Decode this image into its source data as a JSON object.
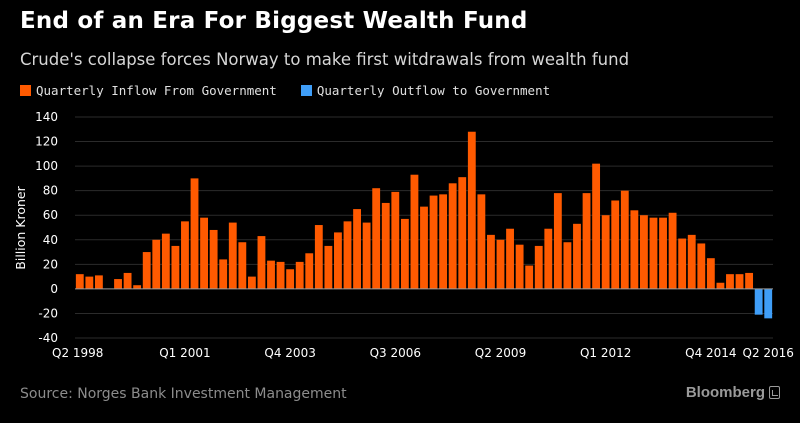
{
  "header": {
    "title": "End of an Era For Biggest Wealth Fund",
    "subtitle": "Crude's collapse forces Norway to make first witdrawals from wealth fund"
  },
  "legend": {
    "inflow_label": "Quarterly Inflow From Government",
    "outflow_label": "Quarterly Outflow to Government"
  },
  "colors": {
    "inflow": "#ff5a00",
    "outflow": "#3f9ef8",
    "gridline": "#2b2b2b",
    "zeroline": "#9a9a9a",
    "tick_text": "#ffffff"
  },
  "footer": {
    "source": "Source: Norges Bank Investment Management",
    "brand": "Bloomberg",
    "brand_icon": "bloomberg-terminal-icon"
  },
  "chart_data": {
    "type": "bar",
    "title": "End of an Era For Biggest Wealth Fund",
    "subtitle": "Crude's collapse forces Norway to make first witdrawals from wealth fund",
    "xlabel": "",
    "ylabel": "Billion Kroner",
    "ylim": [
      -40,
      140
    ],
    "yticks": [
      -40,
      -20,
      0,
      20,
      40,
      60,
      80,
      100,
      120,
      140
    ],
    "grid": true,
    "legend_position": "top-left",
    "x_tick_labels": [
      {
        "label": "Q2 1998",
        "index": 0
      },
      {
        "label": "Q1 2001",
        "index": 11
      },
      {
        "label": "Q4 2003",
        "index": 22
      },
      {
        "label": "Q3 2006",
        "index": 33
      },
      {
        "label": "Q2 2009",
        "index": 44
      },
      {
        "label": "Q1 2012",
        "index": 55
      },
      {
        "label": "Q4 2014",
        "index": 66
      },
      {
        "label": "Q2 2016",
        "index": 72
      }
    ],
    "series": [
      {
        "name": "Quarterly Inflow From Government",
        "values": [
          12,
          10,
          11,
          null,
          8,
          13,
          3,
          30,
          40,
          45,
          35,
          55,
          90,
          58,
          48,
          24,
          54,
          38,
          10,
          43,
          23,
          22,
          16,
          22,
          29,
          52,
          35,
          46,
          55,
          65,
          54,
          82,
          70,
          79,
          57,
          93,
          67,
          76,
          77,
          86,
          91,
          128,
          77,
          44,
          40,
          49,
          36,
          19,
          35,
          49,
          78,
          38,
          53,
          78,
          102,
          60,
          72,
          80,
          64,
          60,
          58,
          58,
          62,
          41,
          44,
          37,
          25,
          5,
          12,
          12,
          13,
          null,
          null
        ]
      },
      {
        "name": "Quarterly Outflow to Government",
        "values": [
          null,
          null,
          null,
          null,
          null,
          null,
          null,
          null,
          null,
          null,
          null,
          null,
          null,
          null,
          null,
          null,
          null,
          null,
          null,
          null,
          null,
          null,
          null,
          null,
          null,
          null,
          null,
          null,
          null,
          null,
          null,
          null,
          null,
          null,
          null,
          null,
          null,
          null,
          null,
          null,
          null,
          null,
          null,
          null,
          null,
          null,
          null,
          null,
          null,
          null,
          null,
          null,
          null,
          null,
          null,
          null,
          null,
          null,
          null,
          null,
          null,
          null,
          null,
          null,
          null,
          null,
          null,
          null,
          null,
          null,
          null,
          -21,
          -24
        ]
      }
    ]
  }
}
